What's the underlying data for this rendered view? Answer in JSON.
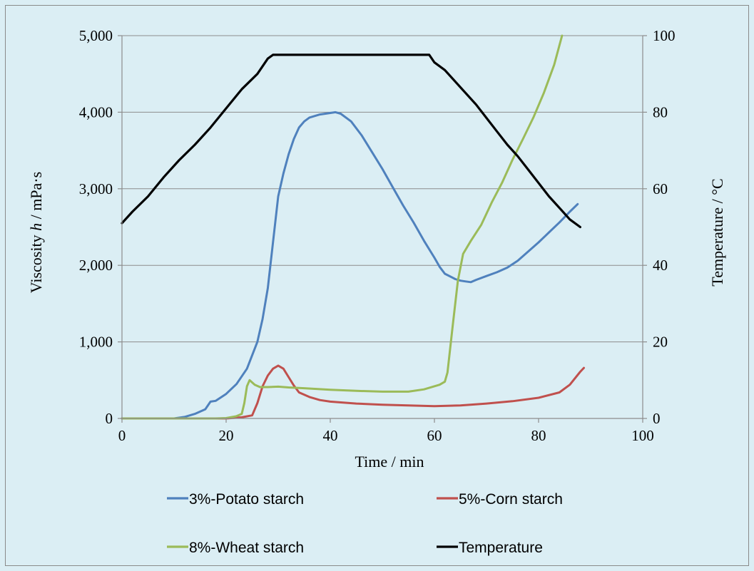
{
  "chart_data": {
    "type": "line",
    "title": "",
    "xlabel": "Time / min",
    "ylabel_left_parts": [
      "Viscosity ",
      "h",
      " / mPa·s"
    ],
    "ylabel_right": "Temperature  / °C",
    "xlim": [
      0,
      100
    ],
    "ylim_left": [
      0,
      5000
    ],
    "ylim_right": [
      0,
      100
    ],
    "x_ticks": [
      "0",
      "20",
      "40",
      "60",
      "80",
      "100"
    ],
    "x_tick_values": [
      0,
      20,
      40,
      60,
      80,
      100
    ],
    "y_left_ticks": [
      "0",
      "1,000",
      "2,000",
      "3,000",
      "4,000",
      "5,000"
    ],
    "y_left_tick_values": [
      0,
      1000,
      2000,
      3000,
      4000,
      5000
    ],
    "y_right_ticks": [
      "0",
      "20",
      "40",
      "60",
      "80",
      "100"
    ],
    "y_right_tick_values": [
      0,
      20,
      40,
      60,
      80,
      100
    ],
    "grid": "horizontal",
    "legend_position": "bottom",
    "series": [
      {
        "name": "3%-Potato starch",
        "axis": "left",
        "color": "#4f81bd",
        "points": [
          [
            0,
            0
          ],
          [
            10,
            0
          ],
          [
            12,
            20
          ],
          [
            14,
            60
          ],
          [
            16,
            120
          ],
          [
            17,
            220
          ],
          [
            18,
            230
          ],
          [
            20,
            320
          ],
          [
            22,
            450
          ],
          [
            24,
            650
          ],
          [
            26,
            1000
          ],
          [
            27,
            1300
          ],
          [
            28,
            1700
          ],
          [
            29,
            2300
          ],
          [
            30,
            2900
          ],
          [
            31,
            3200
          ],
          [
            32,
            3450
          ],
          [
            33,
            3650
          ],
          [
            34,
            3800
          ],
          [
            35,
            3880
          ],
          [
            36,
            3930
          ],
          [
            38,
            3970
          ],
          [
            40,
            3990
          ],
          [
            41,
            4000
          ],
          [
            42,
            3980
          ],
          [
            44,
            3880
          ],
          [
            46,
            3700
          ],
          [
            48,
            3480
          ],
          [
            50,
            3260
          ],
          [
            52,
            3020
          ],
          [
            54,
            2780
          ],
          [
            56,
            2560
          ],
          [
            58,
            2320
          ],
          [
            60,
            2100
          ],
          [
            61,
            1980
          ],
          [
            62,
            1890
          ],
          [
            64,
            1820
          ],
          [
            65,
            1800
          ],
          [
            66,
            1790
          ],
          [
            67,
            1780
          ],
          [
            68,
            1810
          ],
          [
            70,
            1860
          ],
          [
            72,
            1910
          ],
          [
            74,
            1970
          ],
          [
            76,
            2060
          ],
          [
            78,
            2180
          ],
          [
            80,
            2300
          ],
          [
            82,
            2430
          ],
          [
            84,
            2560
          ],
          [
            86,
            2700
          ],
          [
            87.5,
            2800
          ]
        ]
      },
      {
        "name": "5%-Corn starch",
        "axis": "left",
        "color": "#c0504d",
        "points": [
          [
            0,
            0
          ],
          [
            20,
            0
          ],
          [
            23,
            15
          ],
          [
            25,
            40
          ],
          [
            26,
            200
          ],
          [
            27,
            420
          ],
          [
            28,
            560
          ],
          [
            29,
            650
          ],
          [
            30,
            690
          ],
          [
            31,
            650
          ],
          [
            32,
            540
          ],
          [
            33,
            430
          ],
          [
            34,
            340
          ],
          [
            36,
            280
          ],
          [
            38,
            240
          ],
          [
            40,
            220
          ],
          [
            45,
            195
          ],
          [
            50,
            180
          ],
          [
            55,
            170
          ],
          [
            60,
            160
          ],
          [
            65,
            170
          ],
          [
            70,
            195
          ],
          [
            75,
            225
          ],
          [
            80,
            270
          ],
          [
            84,
            340
          ],
          [
            86,
            440
          ],
          [
            88,
            610
          ],
          [
            88.7,
            660
          ]
        ]
      },
      {
        "name": "8%-Wheat starch",
        "axis": "left",
        "color": "#9bbb59",
        "points": [
          [
            0,
            0
          ],
          [
            18,
            0
          ],
          [
            20,
            5
          ],
          [
            22,
            30
          ],
          [
            23,
            60
          ],
          [
            23.5,
            200
          ],
          [
            24,
            420
          ],
          [
            24.5,
            500
          ],
          [
            25.5,
            440
          ],
          [
            26.5,
            410
          ],
          [
            28,
            410
          ],
          [
            30,
            415
          ],
          [
            32,
            405
          ],
          [
            35,
            395
          ],
          [
            40,
            375
          ],
          [
            45,
            360
          ],
          [
            50,
            350
          ],
          [
            55,
            350
          ],
          [
            58,
            380
          ],
          [
            61,
            440
          ],
          [
            62,
            480
          ],
          [
            62.5,
            600
          ],
          [
            63.5,
            1200
          ],
          [
            64.5,
            1800
          ],
          [
            65.5,
            2150
          ],
          [
            67,
            2320
          ],
          [
            69,
            2530
          ],
          [
            71,
            2820
          ],
          [
            73,
            3080
          ],
          [
            75,
            3380
          ],
          [
            77,
            3650
          ],
          [
            79,
            3930
          ],
          [
            81,
            4250
          ],
          [
            83,
            4620
          ],
          [
            84.5,
            5000
          ]
        ]
      },
      {
        "name": "Temperature",
        "axis": "right",
        "color": "#000000",
        "points": [
          [
            0,
            51
          ],
          [
            2,
            54
          ],
          [
            5,
            58
          ],
          [
            8,
            63
          ],
          [
            11,
            67.5
          ],
          [
            14,
            71.5
          ],
          [
            17,
            76
          ],
          [
            20,
            81
          ],
          [
            23,
            86
          ],
          [
            26,
            90
          ],
          [
            28,
            94
          ],
          [
            29,
            95
          ],
          [
            59,
            95
          ],
          [
            60,
            93
          ],
          [
            62,
            91
          ],
          [
            64,
            88
          ],
          [
            66,
            85
          ],
          [
            68,
            82
          ],
          [
            70,
            78.5
          ],
          [
            72,
            75
          ],
          [
            74,
            71.5
          ],
          [
            76,
            68.5
          ],
          [
            78,
            65
          ],
          [
            80,
            61.5
          ],
          [
            82,
            58
          ],
          [
            84,
            55
          ],
          [
            86,
            52
          ],
          [
            88,
            50
          ]
        ]
      }
    ]
  }
}
